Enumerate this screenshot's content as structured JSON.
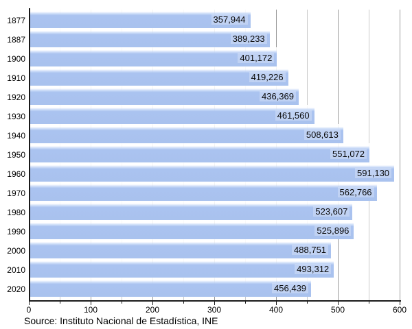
{
  "chart_data": {
    "type": "bar",
    "orientation": "horizontal",
    "title": "",
    "xlabel": "",
    "ylabel": "",
    "categories": [
      "1877",
      "1887",
      "1900",
      "1910",
      "1920",
      "1930",
      "1940",
      "1950",
      "1960",
      "1970",
      "1980",
      "1990",
      "2000",
      "2010",
      "2020"
    ],
    "values": [
      357944,
      389233,
      401172,
      419226,
      436369,
      461560,
      508613,
      551072,
      591130,
      562766,
      523607,
      525896,
      488751,
      493312,
      456439
    ],
    "value_labels": [
      "357,944",
      "389,233",
      "401,172",
      "419,226",
      "436,369",
      "461,560",
      "508,613",
      "551,072",
      "591,130",
      "562,766",
      "523,607",
      "525,896",
      "488,751",
      "493,312",
      "456,439"
    ],
    "xlim": [
      0,
      600
    ],
    "value_divisor": 1000,
    "x_major_tick_step": 100,
    "x_minor_tick_step": 50,
    "x_tick_labels": [
      "0",
      "100",
      "200",
      "300",
      "400",
      "500",
      "600"
    ],
    "grid": true,
    "legend": false,
    "source": "Source: Instituto Nacional de Estadística, INE",
    "colors": {
      "bar": "#a9c2ee",
      "bar_highlight": "#ffffff",
      "grid_major": "#999999",
      "grid_minor": "#c9c9c9",
      "axis": "#1a1a1a",
      "text": "#000000"
    }
  }
}
